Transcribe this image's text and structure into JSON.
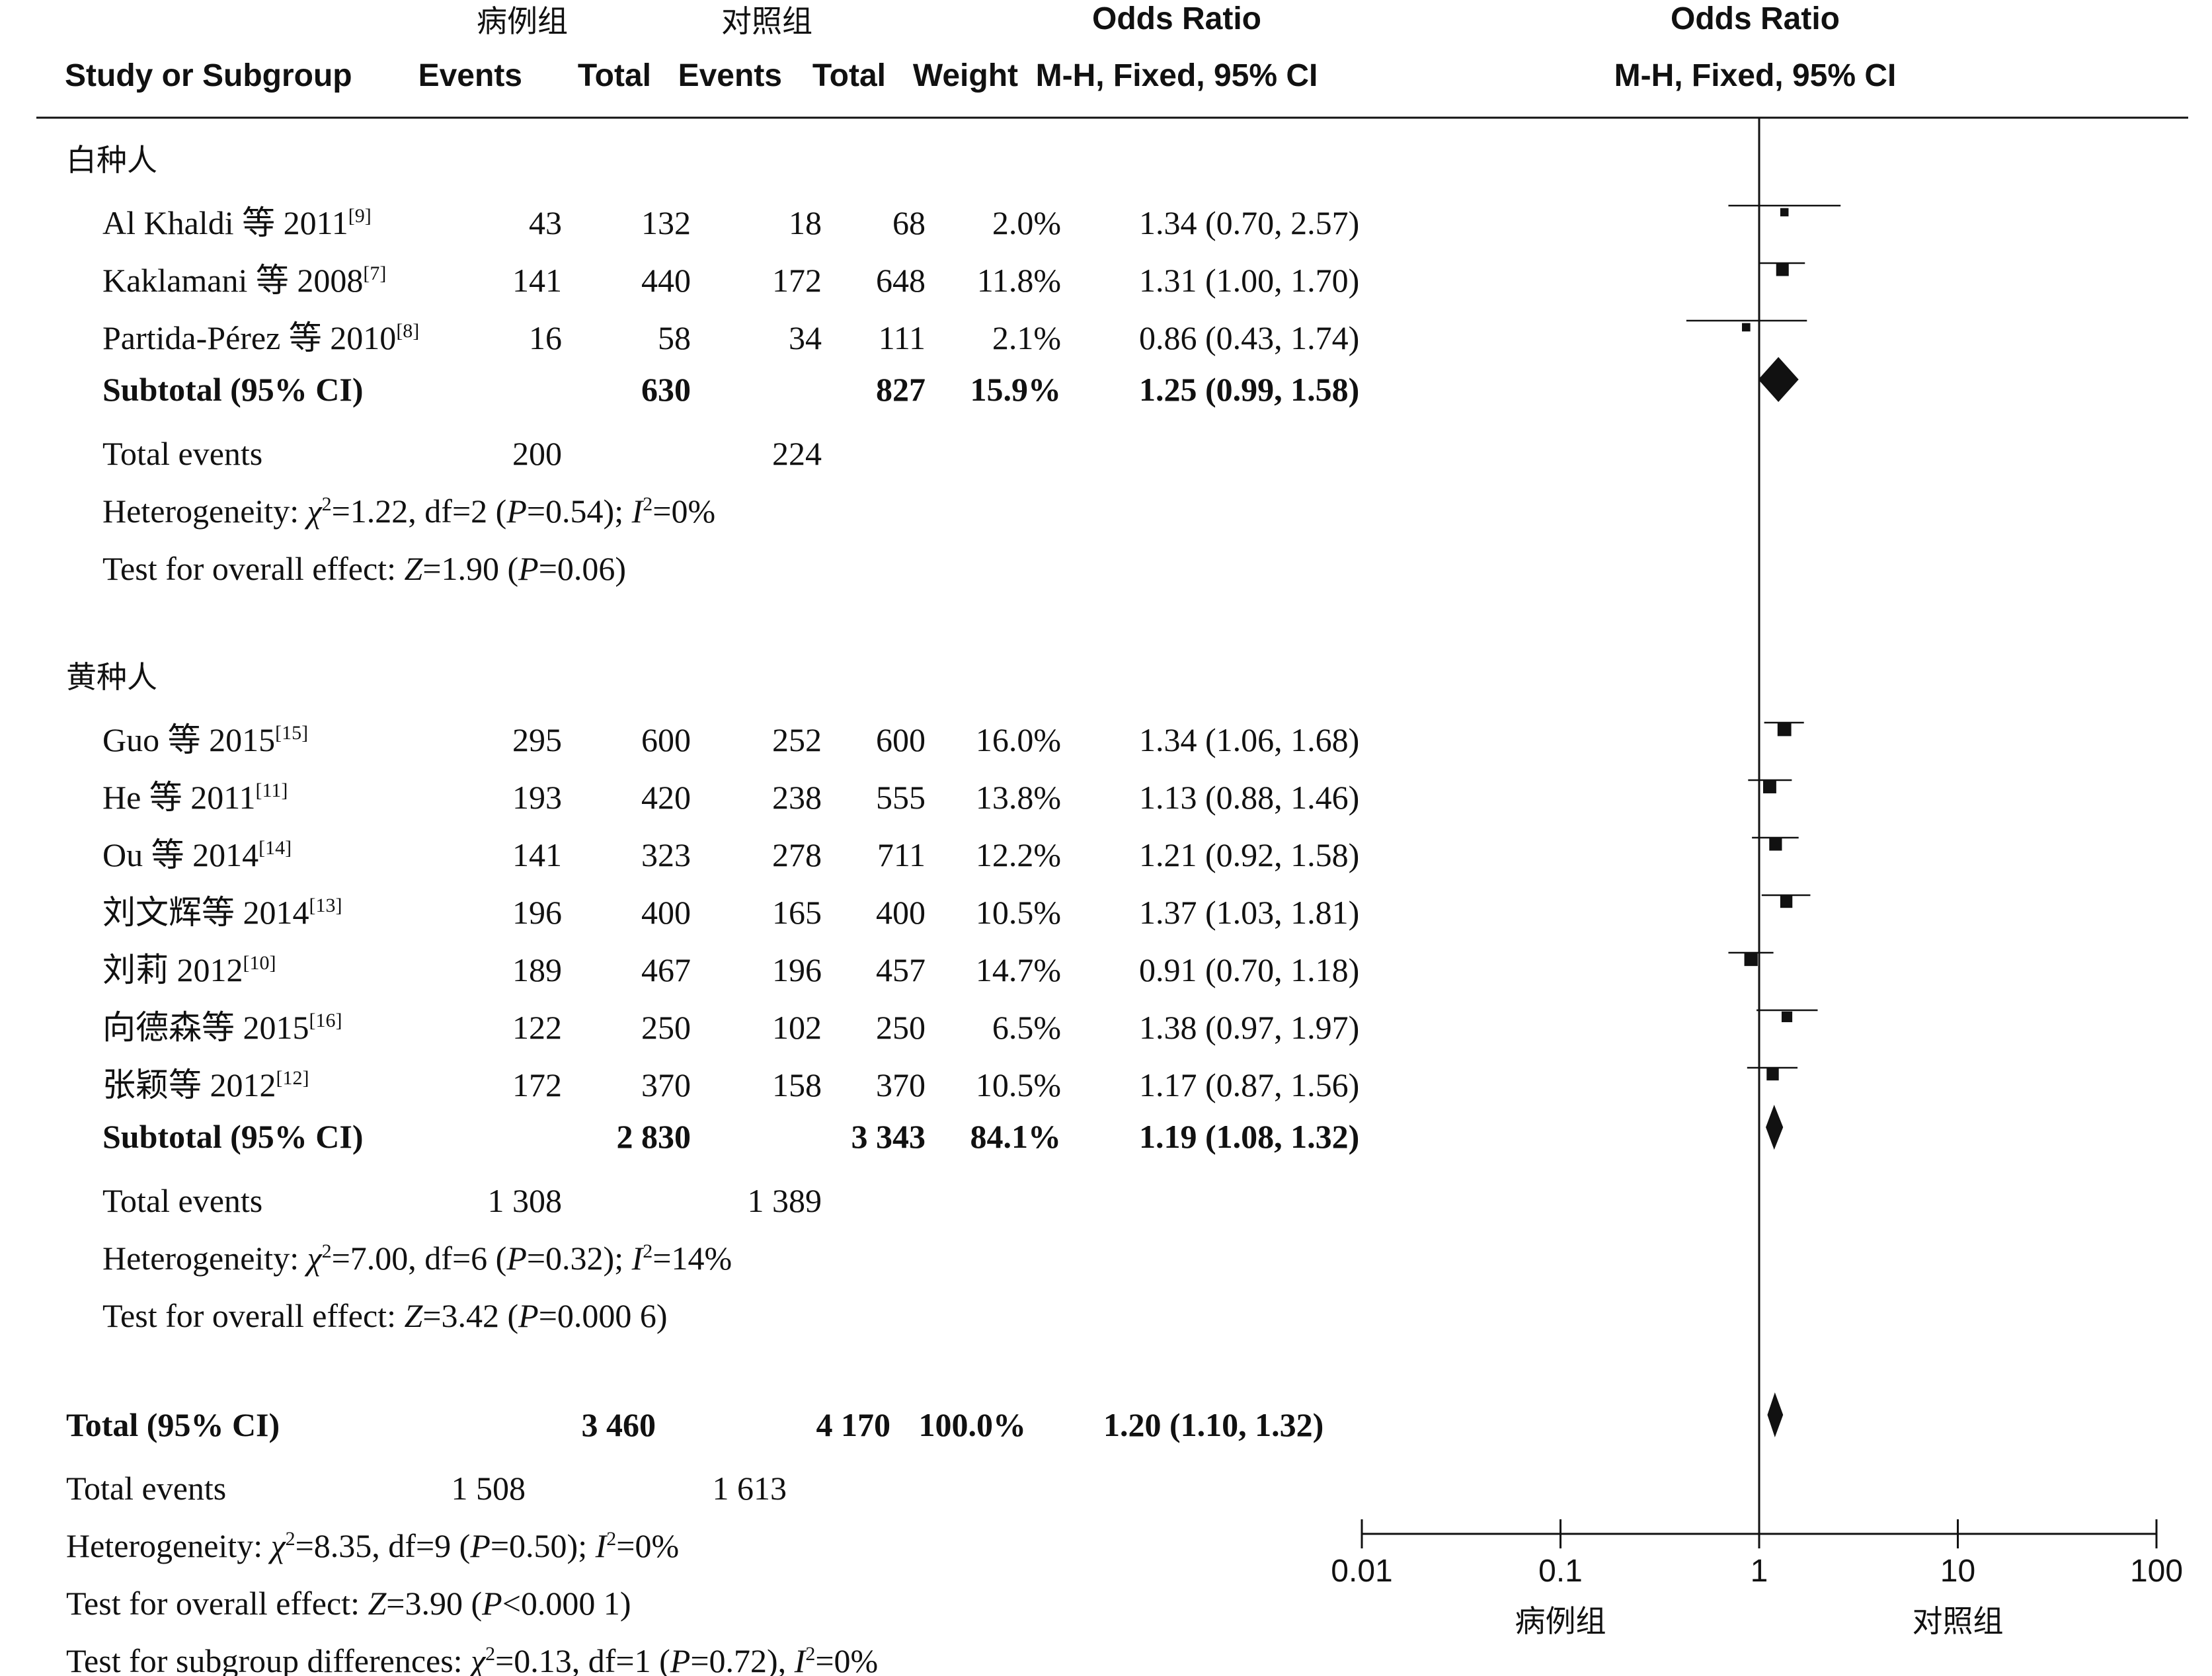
{
  "header": {
    "case_group": "病例组",
    "control_group": "对照组",
    "study_col": "Study or Subgroup",
    "events": "Events",
    "total": "Total",
    "weight": "Weight",
    "or_title": "Odds Ratio",
    "or_method": "M-H, Fixed, 95% CI"
  },
  "subgroups": [
    {
      "name": "白种人",
      "studies": [
        {
          "name": "Al Khaldi 等 2011",
          "ref": "[9]",
          "e1": "43",
          "t1": "132",
          "e2": "18",
          "t2": "68",
          "w": "2.0%",
          "ci": "1.34 (0.70, 2.57)"
        },
        {
          "name": "Kaklamani 等 2008",
          "ref": "[7]",
          "e1": "141",
          "t1": "440",
          "e2": "172",
          "t2": "648",
          "w": "11.8%",
          "ci": "1.31 (1.00, 1.70)"
        },
        {
          "name": "Partida-Pérez 等 2010",
          "ref": "[8]",
          "e1": "16",
          "t1": "58",
          "e2": "34",
          "t2": "111",
          "w": "2.1%",
          "ci": "0.86 (0.43, 1.74)"
        }
      ],
      "subtotal": {
        "label": "Subtotal (95% CI)",
        "t1": "630",
        "t2": "827",
        "w": "15.9%",
        "ci": "1.25 (0.99, 1.58)"
      },
      "events": {
        "label": "Total events",
        "e1": "200",
        "e2": "224"
      },
      "het": {
        "prefix": "Heterogeneity: ",
        "chi": "χ",
        "chi_sup": "2",
        "chi_val": "=1.22, df=2 (",
        "p": "P",
        "p_val": "=0.54); ",
        "i": "I",
        "i_sup": "2",
        "i_val": "=0%"
      },
      "test": {
        "prefix": "Test for overall effect: ",
        "z": "Z",
        "z_val": "=1.90 (",
        "p": "P",
        "p_val": "=0.06)"
      }
    },
    {
      "name": "黄种人",
      "studies": [
        {
          "name": "Guo 等 2015",
          "ref": "[15]",
          "e1": "295",
          "t1": "600",
          "e2": "252",
          "t2": "600",
          "w": "16.0%",
          "ci": "1.34 (1.06, 1.68)"
        },
        {
          "name": "He 等 2011",
          "ref": "[11]",
          "e1": "193",
          "t1": "420",
          "e2": "238",
          "t2": "555",
          "w": "13.8%",
          "ci": "1.13 (0.88, 1.46)"
        },
        {
          "name": "Ou 等 2014",
          "ref": "[14]",
          "e1": "141",
          "t1": "323",
          "e2": "278",
          "t2": "711",
          "w": "12.2%",
          "ci": "1.21 (0.92, 1.58)"
        },
        {
          "name": "刘文辉等 2014",
          "ref": "[13]",
          "e1": "196",
          "t1": "400",
          "e2": "165",
          "t2": "400",
          "w": "10.5%",
          "ci": "1.37 (1.03, 1.81)"
        },
        {
          "name": "刘莉 2012",
          "ref": "[10]",
          "e1": "189",
          "t1": "467",
          "e2": "196",
          "t2": "457",
          "w": "14.7%",
          "ci": "0.91 (0.70, 1.18)"
        },
        {
          "name": "向德森等 2015",
          "ref": "[16]",
          "e1": "122",
          "t1": "250",
          "e2": "102",
          "t2": "250",
          "w": "6.5%",
          "ci": "1.38 (0.97, 1.97)"
        },
        {
          "name": "张颖等 2012",
          "ref": "[12]",
          "e1": "172",
          "t1": "370",
          "e2": "158",
          "t2": "370",
          "w": "10.5%",
          "ci": "1.17 (0.87, 1.56)"
        }
      ],
      "subtotal": {
        "label": "Subtotal (95% CI)",
        "t1": "2 830",
        "t2": "3 343",
        "w": "84.1%",
        "ci": "1.19 (1.08, 1.32)"
      },
      "events": {
        "label": "Total events",
        "e1": "1 308",
        "e2": "1 389"
      },
      "het": {
        "prefix": "Heterogeneity: ",
        "chi": "χ",
        "chi_sup": "2",
        "chi_val": "=7.00, df=6 (",
        "p": "P",
        "p_val": "=0.32); ",
        "i": "I",
        "i_sup": "2",
        "i_val": "=14%"
      },
      "test": {
        "prefix": "Test for overall effect: ",
        "z": "Z",
        "z_val": "=3.42 (",
        "p": "P",
        "p_val": "=0.000 6)"
      }
    }
  ],
  "overall": {
    "total": {
      "label": "Total (95% CI)",
      "t1": "3 460",
      "t2": "4 170",
      "w": "100.0%",
      "ci": "1.20 (1.10, 1.32)"
    },
    "events": {
      "label": "Total events",
      "e1": "1 508",
      "e2": "1 613"
    },
    "het": {
      "prefix": "Heterogeneity: ",
      "chi": "χ",
      "chi_sup": "2",
      "chi_val": "=8.35, df=9 (",
      "p": "P",
      "p_val": "=0.50); ",
      "i": "I",
      "i_sup": "2",
      "i_val": "=0%"
    },
    "test": {
      "prefix": "Test for overall effect: ",
      "z": "Z",
      "z_val": "=3.90 (",
      "p": "P",
      "p_val": "<0.000 1)"
    },
    "subgroup": {
      "prefix": "Test for subgroup differences: ",
      "chi": "χ",
      "chi_sup": "2",
      "chi_val": "=0.13, df=1 (",
      "p": "P",
      "p_val": "=0.72), ",
      "i": "I",
      "i_sup": "2",
      "i_val": "=0%"
    }
  },
  "axis": {
    "ticks": [
      "0.01",
      "0.1",
      "1",
      "10",
      "100"
    ],
    "left_label": "病例组",
    "right_label": "对照组"
  },
  "chart_data": {
    "type": "forest",
    "scale": "log",
    "xlim": [
      0.01,
      100
    ],
    "reference_line": 1,
    "studies": [
      {
        "name": "Al Khaldi 等 2011",
        "or": 1.34,
        "lo": 0.7,
        "hi": 2.57,
        "weight": 2.0
      },
      {
        "name": "Kaklamani 等 2008",
        "or": 1.31,
        "lo": 1.0,
        "hi": 1.7,
        "weight": 11.8
      },
      {
        "name": "Partida-Pérez 等 2010",
        "or": 0.86,
        "lo": 0.43,
        "hi": 1.74,
        "weight": 2.1
      },
      {
        "name": "Guo 等 2015",
        "or": 1.34,
        "lo": 1.06,
        "hi": 1.68,
        "weight": 16.0
      },
      {
        "name": "He 等 2011",
        "or": 1.13,
        "lo": 0.88,
        "hi": 1.46,
        "weight": 13.8
      },
      {
        "name": "Ou 等 2014",
        "or": 1.21,
        "lo": 0.92,
        "hi": 1.58,
        "weight": 12.2
      },
      {
        "name": "刘文辉等 2014",
        "or": 1.37,
        "lo": 1.03,
        "hi": 1.81,
        "weight": 10.5
      },
      {
        "name": "刘莉 2012",
        "or": 0.91,
        "lo": 0.7,
        "hi": 1.18,
        "weight": 14.7
      },
      {
        "name": "向德森等 2015",
        "or": 1.38,
        "lo": 0.97,
        "hi": 1.97,
        "weight": 6.5
      },
      {
        "name": "张颖等 2012",
        "or": 1.17,
        "lo": 0.87,
        "hi": 1.56,
        "weight": 10.5
      }
    ],
    "diamonds": [
      {
        "name": "Subtotal 白种人",
        "or": 1.25,
        "lo": 0.99,
        "hi": 1.58
      },
      {
        "name": "Subtotal 黄种人",
        "or": 1.19,
        "lo": 1.08,
        "hi": 1.32
      },
      {
        "name": "Total",
        "or": 1.2,
        "lo": 1.1,
        "hi": 1.32
      }
    ]
  }
}
